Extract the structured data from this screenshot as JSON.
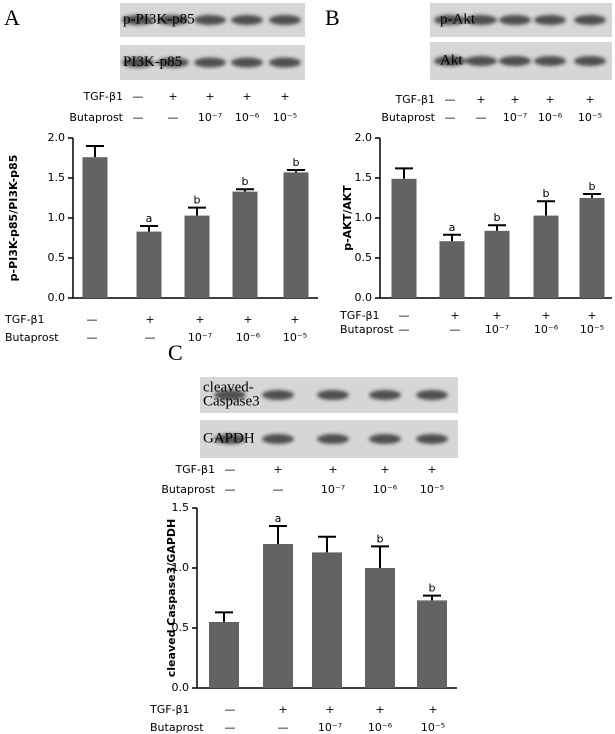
{
  "chart_data": [
    {
      "type": "bar",
      "panel": "A",
      "blots": [
        [
          "p-PI3K-p85"
        ],
        [
          "PI3K-p85"
        ]
      ],
      "treatments": [
        {
          "name": "TGF-β1",
          "levels": [
            "—",
            "+",
            "+",
            "+",
            "+"
          ]
        },
        {
          "name": "Butaprost",
          "levels": [
            "—",
            "—",
            "10⁻⁷",
            "10⁻⁶",
            "10⁻⁵"
          ]
        }
      ],
      "ylabel": "p-PI3K-p85/PI3K-p85",
      "ylim": [
        0,
        2
      ],
      "yticks": [
        {
          "value": 0,
          "label": "0.0"
        },
        0.5,
        {
          "value": 1,
          "label": "1.0"
        },
        1.5,
        {
          "value": 2,
          "label": "2.0"
        }
      ],
      "values": [
        1.76,
        0.83,
        1.03,
        1.33,
        1.57
      ],
      "errors": [
        0.14,
        0.07,
        0.1,
        0.03,
        0.03
      ],
      "sig_labels": [
        null,
        "a",
        "b",
        "b",
        "b"
      ],
      "color": "#636363"
    },
    {
      "type": "bar",
      "panel": "B",
      "blots": [
        [
          "p-Akt"
        ],
        [
          "Akt"
        ]
      ],
      "treatments": [
        {
          "name": "TGF-β1",
          "levels": [
            "—",
            "+",
            "+",
            "+",
            "+"
          ]
        },
        {
          "name": "Butaprost",
          "levels": [
            "—",
            "—",
            "10⁻⁷",
            "10⁻⁶",
            "10⁻⁵"
          ]
        }
      ],
      "ylabel": "p-AKT/AKT",
      "ylim": [
        0,
        2
      ],
      "yticks": [
        {
          "value": 0,
          "label": "0.0"
        },
        0.5,
        {
          "value": 1,
          "label": "1.0"
        },
        1.5,
        {
          "value": 2,
          "label": "2.0"
        }
      ],
      "values": [
        1.49,
        0.71,
        0.84,
        1.03,
        1.25
      ],
      "errors": [
        0.13,
        0.08,
        0.07,
        0.18,
        0.05
      ],
      "sig_labels": [
        null,
        "a",
        "b",
        "b",
        "b"
      ],
      "color": "#636363"
    },
    {
      "type": "bar",
      "panel": "C",
      "blots": [
        [
          "cleaved-",
          "Caspase3"
        ],
        [
          "GAPDH"
        ]
      ],
      "treatments": [
        {
          "name": "TGF-β1",
          "levels": [
            "—",
            "+",
            "+",
            "+",
            "+"
          ]
        },
        {
          "name": "Butaprost",
          "levels": [
            "—",
            "—",
            "10⁻⁷",
            "10⁻⁶",
            "10⁻⁵"
          ]
        }
      ],
      "ylabel": "cleaved Caspase3/GAPDH",
      "ylim": [
        0,
        1.5
      ],
      "yticks": [
        {
          "value": 0,
          "label": "0.0"
        },
        0.5,
        {
          "value": 1,
          "label": "1.0"
        },
        1.5
      ],
      "values": [
        0.55,
        1.2,
        1.13,
        1.0,
        0.73
      ],
      "errors": [
        0.08,
        0.15,
        0.13,
        0.18,
        0.04
      ],
      "sig_labels": [
        null,
        "a",
        null,
        "b",
        "b"
      ],
      "color": "#636363"
    }
  ]
}
